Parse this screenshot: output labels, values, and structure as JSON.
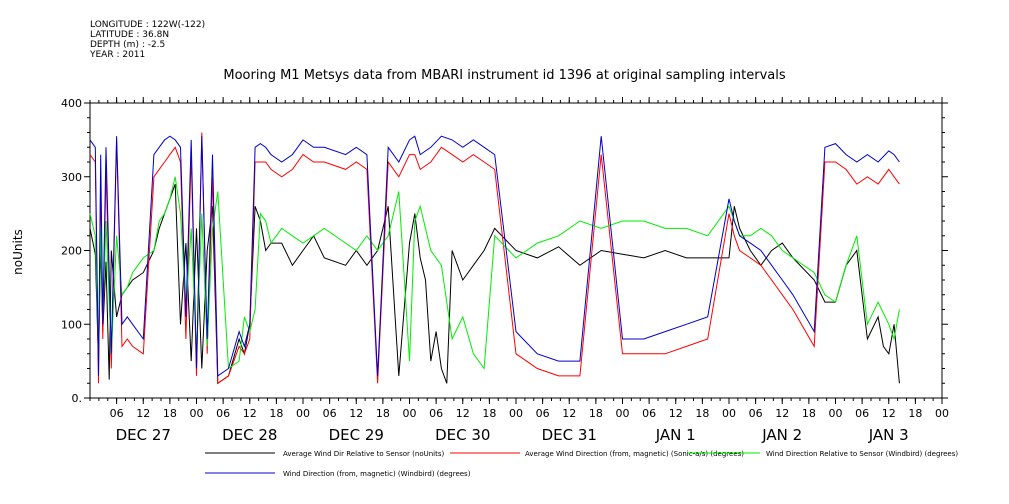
{
  "meta": {
    "longitude": "LONGITUDE : 122W(-122)",
    "latitude": "LATITUDE : 36.8N",
    "depth": "DEPTH (m) : -2.5",
    "year": "YEAR : 2011"
  },
  "chart_data": {
    "type": "line",
    "title": "Mooring M1 Metsys data from MBARI instrument id 1396 at original sampling intervals",
    "ylabel": "noUnits",
    "xlabel": "",
    "ylim": [
      0,
      400
    ],
    "yticks": [
      "0.",
      "100",
      "200",
      "300",
      "400"
    ],
    "xlim": [
      0,
      8.0
    ],
    "hour_ticks": [
      "06",
      "12",
      "18",
      "00",
      "06",
      "12",
      "18",
      "00",
      "06",
      "12",
      "18",
      "00",
      "06",
      "12",
      "18",
      "00",
      "06",
      "12",
      "18",
      "00",
      "06",
      "12",
      "18",
      "00",
      "06",
      "12",
      "18",
      "00",
      "06",
      "12",
      "18",
      "00"
    ],
    "day_labels": [
      "DEC 27",
      "DEC 28",
      "DEC 29",
      "DEC 30",
      "DEC 31",
      "JAN 1",
      "JAN 2",
      "JAN 3"
    ],
    "series": [
      {
        "name": "Average Wind Dir Relative to Sensor (noUnits)",
        "color": "#000000",
        "x": [
          0.0,
          0.05,
          0.08,
          0.1,
          0.12,
          0.15,
          0.18,
          0.2,
          0.25,
          0.3,
          0.35,
          0.4,
          0.5,
          0.6,
          0.65,
          0.7,
          0.75,
          0.8,
          0.85,
          0.9,
          0.95,
          1.0,
          1.05,
          1.1,
          1.15,
          1.2,
          1.3,
          1.4,
          1.45,
          1.5,
          1.55,
          1.6,
          1.65,
          1.7,
          1.8,
          1.9,
          2.0,
          2.1,
          2.2,
          2.4,
          2.5,
          2.6,
          2.7,
          2.8,
          2.9,
          3.0,
          3.05,
          3.1,
          3.15,
          3.2,
          3.25,
          3.3,
          3.35,
          3.4,
          3.5,
          3.6,
          3.7,
          3.8,
          4.0,
          4.2,
          4.4,
          4.6,
          4.8,
          5.0,
          5.2,
          5.4,
          5.6,
          5.8,
          6.0,
          6.05,
          6.1,
          6.2,
          6.3,
          6.4,
          6.5,
          6.6,
          6.8,
          6.9,
          7.0,
          7.1,
          7.2,
          7.3,
          7.4,
          7.45,
          7.5,
          7.55,
          7.6
        ],
        "y": [
          230,
          195,
          50,
          210,
          90,
          185,
          25,
          200,
          110,
          140,
          150,
          160,
          170,
          200,
          230,
          250,
          270,
          290,
          100,
          210,
          50,
          230,
          40,
          200,
          260,
          20,
          30,
          80,
          60,
          100,
          260,
          240,
          200,
          210,
          210,
          180,
          200,
          220,
          190,
          180,
          200,
          180,
          200,
          260,
          30,
          210,
          250,
          190,
          160,
          50,
          90,
          40,
          20,
          200,
          160,
          180,
          200,
          230,
          200,
          190,
          205,
          180,
          200,
          195,
          190,
          200,
          190,
          190,
          190,
          260,
          230,
          200,
          180,
          200,
          210,
          190,
          160,
          130,
          130,
          180,
          200,
          80,
          110,
          70,
          60,
          100,
          20
        ]
      },
      {
        "name": "Average Wind Direction (from, magnetic) (Sonic-a/s) (degrees)",
        "color": "#ff0000",
        "x": [
          0.0,
          0.05,
          0.08,
          0.1,
          0.12,
          0.15,
          0.2,
          0.25,
          0.3,
          0.35,
          0.4,
          0.5,
          0.6,
          0.65,
          0.7,
          0.75,
          0.8,
          0.85,
          0.9,
          0.95,
          1.0,
          1.05,
          1.1,
          1.15,
          1.2,
          1.3,
          1.4,
          1.45,
          1.5,
          1.55,
          1.6,
          1.65,
          1.7,
          1.8,
          1.9,
          2.0,
          2.1,
          2.2,
          2.4,
          2.5,
          2.6,
          2.7,
          2.8,
          2.9,
          3.0,
          3.05,
          3.1,
          3.2,
          3.3,
          3.4,
          3.5,
          3.6,
          3.7,
          3.8,
          4.0,
          4.2,
          4.4,
          4.6,
          4.8,
          5.0,
          5.2,
          5.4,
          5.6,
          5.8,
          6.0,
          6.05,
          6.1,
          6.2,
          6.3,
          6.4,
          6.5,
          6.6,
          6.8,
          6.9,
          7.0,
          7.1,
          7.2,
          7.3,
          7.4,
          7.5,
          7.55,
          7.6
        ],
        "y": [
          330,
          320,
          20,
          300,
          80,
          310,
          40,
          350,
          70,
          80,
          70,
          60,
          300,
          310,
          320,
          330,
          340,
          320,
          80,
          330,
          30,
          360,
          60,
          300,
          20,
          30,
          70,
          60,
          80,
          320,
          320,
          320,
          310,
          300,
          310,
          330,
          320,
          320,
          310,
          320,
          310,
          20,
          320,
          300,
          330,
          330,
          310,
          320,
          340,
          330,
          320,
          330,
          320,
          310,
          60,
          40,
          30,
          30,
          330,
          60,
          60,
          60,
          70,
          80,
          250,
          220,
          200,
          190,
          180,
          160,
          140,
          120,
          70,
          320,
          320,
          310,
          290,
          300,
          290,
          310,
          300,
          290
        ]
      },
      {
        "name": "Wind Direction Relative to Sensor (Windbird) (degrees)",
        "color": "#00ee00",
        "x": [
          0.0,
          0.05,
          0.08,
          0.1,
          0.12,
          0.15,
          0.2,
          0.25,
          0.3,
          0.35,
          0.4,
          0.5,
          0.6,
          0.65,
          0.7,
          0.75,
          0.8,
          0.85,
          0.9,
          0.95,
          1.0,
          1.05,
          1.1,
          1.15,
          1.2,
          1.3,
          1.4,
          1.45,
          1.5,
          1.55,
          1.6,
          1.65,
          1.7,
          1.8,
          1.9,
          2.0,
          2.1,
          2.2,
          2.4,
          2.5,
          2.6,
          2.7,
          2.8,
          2.9,
          3.0,
          3.05,
          3.1,
          3.2,
          3.3,
          3.4,
          3.5,
          3.6,
          3.7,
          3.8,
          4.0,
          4.2,
          4.4,
          4.6,
          4.8,
          5.0,
          5.2,
          5.4,
          5.6,
          5.8,
          6.0,
          6.05,
          6.1,
          6.2,
          6.3,
          6.4,
          6.5,
          6.6,
          6.8,
          6.9,
          7.0,
          7.1,
          7.2,
          7.3,
          7.4,
          7.5,
          7.55,
          7.6
        ],
        "y": [
          250,
          220,
          60,
          230,
          110,
          240,
          60,
          220,
          140,
          150,
          170,
          190,
          200,
          240,
          250,
          270,
          300,
          250,
          120,
          230,
          60,
          250,
          70,
          230,
          280,
          40,
          50,
          110,
          90,
          120,
          250,
          240,
          210,
          230,
          220,
          210,
          220,
          230,
          210,
          200,
          220,
          200,
          220,
          280,
          50,
          240,
          260,
          200,
          180,
          80,
          110,
          60,
          40,
          220,
          190,
          210,
          220,
          240,
          230,
          240,
          240,
          230,
          230,
          220,
          260,
          240,
          220,
          220,
          230,
          220,
          200,
          190,
          170,
          140,
          130,
          180,
          220,
          100,
          130,
          100,
          80,
          120
        ]
      },
      {
        "name": "Wind Direction (from, magnetic) (Windbird) (degrees)",
        "color": "#0000cc",
        "x": [
          0.0,
          0.05,
          0.08,
          0.1,
          0.12,
          0.15,
          0.2,
          0.25,
          0.3,
          0.35,
          0.4,
          0.5,
          0.6,
          0.65,
          0.7,
          0.75,
          0.8,
          0.85,
          0.9,
          0.95,
          1.0,
          1.05,
          1.1,
          1.15,
          1.2,
          1.3,
          1.4,
          1.45,
          1.5,
          1.55,
          1.6,
          1.65,
          1.7,
          1.8,
          1.9,
          2.0,
          2.1,
          2.2,
          2.4,
          2.5,
          2.6,
          2.7,
          2.8,
          2.9,
          3.0,
          3.05,
          3.1,
          3.2,
          3.3,
          3.4,
          3.5,
          3.6,
          3.7,
          3.8,
          4.0,
          4.2,
          4.4,
          4.6,
          4.8,
          5.0,
          5.2,
          5.4,
          5.6,
          5.8,
          6.0,
          6.05,
          6.1,
          6.2,
          6.3,
          6.4,
          6.5,
          6.6,
          6.8,
          6.9,
          7.0,
          7.1,
          7.2,
          7.3,
          7.4,
          7.5,
          7.55,
          7.6
        ],
        "y": [
          350,
          340,
          30,
          330,
          100,
          340,
          60,
          355,
          100,
          110,
          100,
          80,
          330,
          340,
          350,
          355,
          350,
          340,
          110,
          350,
          40,
          355,
          80,
          330,
          30,
          40,
          90,
          70,
          100,
          340,
          345,
          340,
          330,
          320,
          330,
          350,
          340,
          340,
          330,
          340,
          330,
          30,
          340,
          320,
          350,
          355,
          330,
          340,
          355,
          350,
          340,
          350,
          340,
          330,
          90,
          60,
          50,
          50,
          355,
          80,
          80,
          90,
          100,
          110,
          270,
          240,
          220,
          210,
          200,
          180,
          160,
          140,
          90,
          340,
          345,
          330,
          320,
          330,
          320,
          335,
          330,
          320
        ]
      }
    ]
  }
}
